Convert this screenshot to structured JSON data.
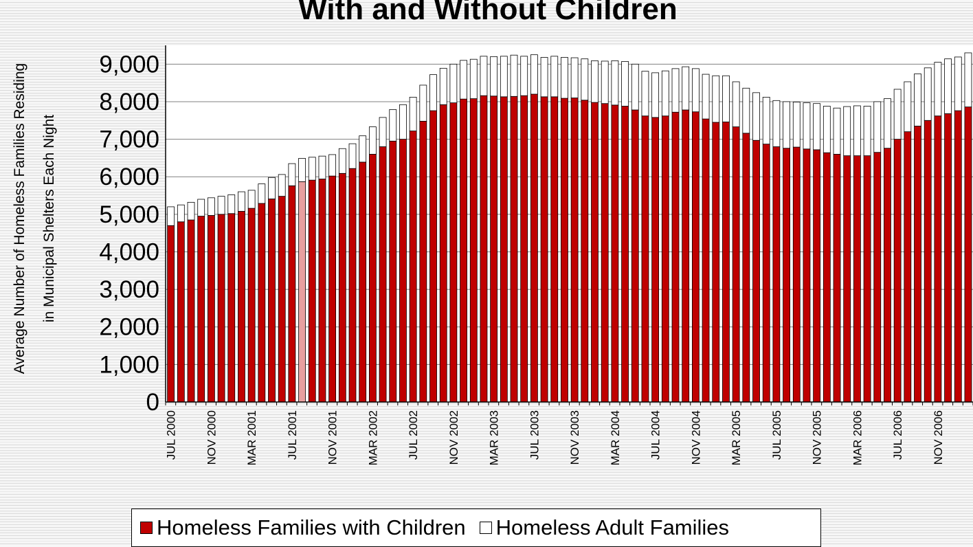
{
  "chart_data": {
    "type": "bar",
    "stacked": true,
    "title": "With and Without Children",
    "ylabel_line1": "Average Number of Homeless Families Residing",
    "ylabel_line2": "in Municipal Shelters Each Night",
    "ylim": [
      0,
      9500
    ],
    "ytick_labels": [
      "0",
      "1,000",
      "2,000",
      "3,000",
      "4,000",
      "5,000",
      "6,000",
      "7,000",
      "8,000",
      "9,000"
    ],
    "x_tick_labels": [
      "JUL 2000",
      "NOV 2000",
      "MAR 2001",
      "JUL 2001",
      "NOV 2001",
      "MAR 2002",
      "JUL 2002",
      "NOV 2002",
      "MAR 2003",
      "JUL 2003",
      "NOV 2003",
      "MAR 2004",
      "JUL 2004",
      "NOV 2004",
      "MAR 2005",
      "JUL 2005",
      "NOV 2005",
      "MAR 2006",
      "JUL 2006",
      "NOV 2006"
    ],
    "grid": true,
    "legend_position": "bottom",
    "highlight_index": 13,
    "series": [
      {
        "name": "Homeless Families with Children",
        "color": "#c00000",
        "values": [
          4700,
          4800,
          4850,
          4950,
          4970,
          5000,
          5020,
          5080,
          5160,
          5290,
          5410,
          5480,
          5760,
          5870,
          5910,
          5940,
          6020,
          6090,
          6220,
          6390,
          6600,
          6800,
          6950,
          7000,
          7220,
          7480,
          7760,
          7920,
          7970,
          8070,
          8080,
          8160,
          8150,
          8130,
          8140,
          8160,
          8200,
          8130,
          8130,
          8090,
          8100,
          8040,
          7980,
          7950,
          7910,
          7880,
          7780,
          7620,
          7580,
          7620,
          7720,
          7780,
          7730,
          7540,
          7450,
          7460,
          7330,
          7160,
          6970,
          6870,
          6800,
          6760,
          6790,
          6740,
          6720,
          6640,
          6600,
          6560,
          6560,
          6560,
          6650,
          6760,
          7000,
          7200,
          7350,
          7500,
          7620,
          7680,
          7760,
          7860
        ]
      },
      {
        "name": "Homeless Adult Families",
        "color": "#ffffff",
        "values": [
          500,
          450,
          470,
          450,
          470,
          480,
          500,
          520,
          480,
          520,
          570,
          580,
          590,
          620,
          610,
          610,
          570,
          660,
          660,
          700,
          730,
          780,
          840,
          920,
          900,
          960,
          960,
          970,
          1030,
          1030,
          1050,
          1050,
          1050,
          1080,
          1100,
          1050,
          1050,
          1050,
          1080,
          1090,
          1070,
          1100,
          1110,
          1130,
          1180,
          1190,
          1220,
          1190,
          1190,
          1200,
          1160,
          1150,
          1150,
          1190,
          1240,
          1230,
          1200,
          1200,
          1270,
          1250,
          1230,
          1240,
          1200,
          1230,
          1230,
          1240,
          1230,
          1310,
          1330,
          1320,
          1350,
          1320,
          1330,
          1330,
          1390,
          1400,
          1430,
          1460,
          1430,
          1440
        ]
      }
    ]
  },
  "legend": {
    "items": [
      {
        "label": "Homeless Families with Children",
        "color": "#c00000"
      },
      {
        "label": "Homeless Adult Families",
        "color": "#ffffff"
      }
    ]
  }
}
